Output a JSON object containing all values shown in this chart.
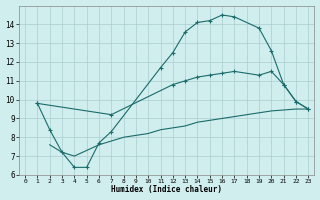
{
  "xlabel": "Humidex (Indice chaleur)",
  "bg_color": "#d0eeee",
  "line_color": "#1a6b6b",
  "grid_color": "#aacece",
  "xlim": [
    -0.5,
    23.5
  ],
  "ylim": [
    6,
    15
  ],
  "xticks": [
    0,
    1,
    2,
    3,
    4,
    5,
    6,
    7,
    8,
    9,
    10,
    11,
    12,
    13,
    14,
    15,
    16,
    17,
    18,
    19,
    20,
    21,
    22,
    23
  ],
  "yticks": [
    6,
    7,
    8,
    9,
    10,
    11,
    12,
    13,
    14
  ],
  "line1_x": [
    1,
    2,
    3,
    4,
    5,
    6,
    7,
    11,
    12,
    13,
    14,
    15,
    16,
    17,
    19,
    20,
    21,
    22,
    23
  ],
  "line1_y": [
    9.8,
    8.4,
    7.2,
    6.4,
    6.4,
    7.7,
    8.3,
    11.7,
    12.5,
    13.6,
    14.1,
    14.2,
    14.5,
    14.4,
    13.8,
    12.6,
    10.8,
    9.9,
    9.5
  ],
  "line2_x": [
    1,
    7,
    12,
    13,
    14,
    15,
    16,
    17,
    19,
    20,
    21,
    22,
    23
  ],
  "line2_y": [
    9.8,
    9.2,
    10.8,
    11.0,
    11.2,
    11.3,
    11.4,
    11.5,
    11.3,
    11.5,
    10.8,
    9.9,
    9.5
  ],
  "line3_x": [
    2,
    3,
    4,
    5,
    6,
    7,
    8,
    9,
    10,
    11,
    12,
    13,
    14,
    15,
    16,
    17,
    18,
    19,
    20,
    21,
    22,
    23
  ],
  "line3_y": [
    7.6,
    7.2,
    7.0,
    7.3,
    7.6,
    7.8,
    8.0,
    8.1,
    8.2,
    8.4,
    8.5,
    8.6,
    8.8,
    8.9,
    9.0,
    9.1,
    9.2,
    9.3,
    9.4,
    9.45,
    9.5,
    9.5
  ]
}
